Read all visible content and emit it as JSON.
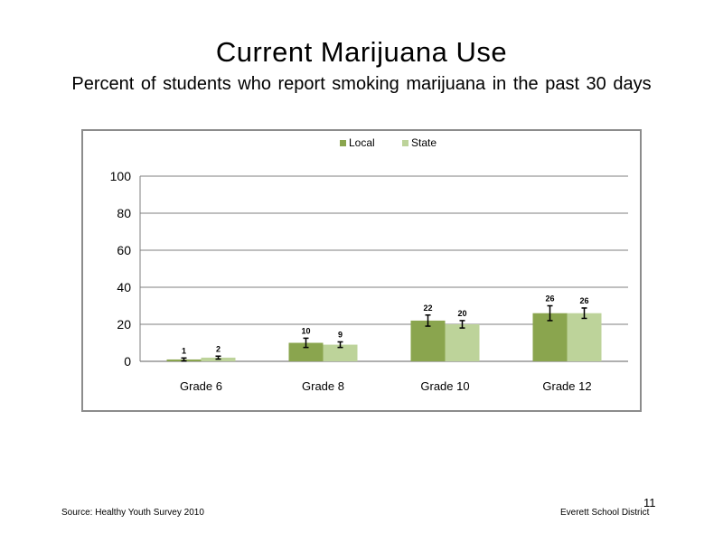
{
  "slide": {
    "title": "Current Marijuana Use",
    "subtitle": "Percent of students who report smoking marijuana in the past 30 days",
    "source": "Source: Healthy Youth Survey 2010",
    "district": "Everett School District",
    "page_number": "11"
  },
  "colors": {
    "local": "#8aa54e",
    "state": "#bdd39a",
    "gridline": "#7f7f7f",
    "frame": "#8c8c8c"
  },
  "chart_data": {
    "type": "bar",
    "categories": [
      "Grade 6",
      "Grade 8",
      "Grade 10",
      "Grade 12"
    ],
    "series": [
      {
        "name": "Local",
        "values": [
          1,
          10,
          22,
          26
        ],
        "errors": [
          0.8,
          2.5,
          3.0,
          4.0
        ]
      },
      {
        "name": "State",
        "values": [
          2,
          9,
          20,
          26
        ],
        "errors": [
          0.8,
          1.5,
          2.0,
          2.8
        ]
      }
    ],
    "yticks": [
      0,
      20,
      40,
      60,
      80,
      100
    ],
    "ylim": [
      0,
      100
    ],
    "grid": true,
    "legend": "top-center",
    "data_labels": true
  }
}
